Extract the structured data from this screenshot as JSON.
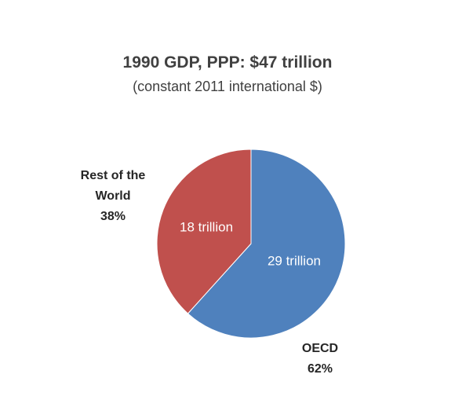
{
  "chart_data": {
    "type": "pie",
    "title": "1990 GDP, PPP: $47 trillion",
    "subtitle": "(constant 2011 international $)",
    "slices": [
      {
        "name": "OECD",
        "value": 29,
        "value_label": "29 trillion",
        "percent_label": "62%",
        "color": "#4f81bd"
      },
      {
        "name": "Rest of the World",
        "value": 18,
        "value_label": "18 trillion",
        "percent_label": "38%",
        "color": "#c0504d"
      }
    ],
    "start": "top",
    "direction": "clockwise",
    "legend": "none"
  }
}
